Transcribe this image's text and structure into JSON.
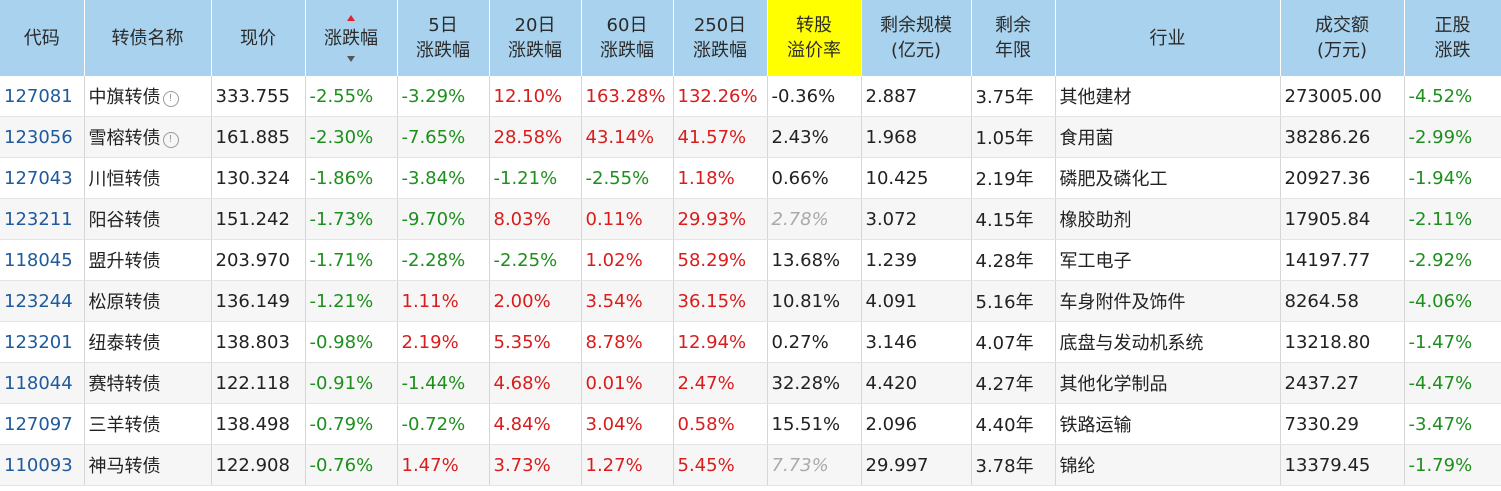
{
  "columns": [
    {
      "key": "code",
      "label": "代码"
    },
    {
      "key": "name",
      "label": "转债名称"
    },
    {
      "key": "price",
      "label": "现价"
    },
    {
      "key": "chg",
      "label": "涨跌幅"
    },
    {
      "key": "chg5",
      "label": "5日\n涨跌幅"
    },
    {
      "key": "chg20",
      "label": "20日\n涨跌幅"
    },
    {
      "key": "chg60",
      "label": "60日\n涨跌幅"
    },
    {
      "key": "chg250",
      "label": "250日\n涨跌幅"
    },
    {
      "key": "premium",
      "label": "转股\n溢价率"
    },
    {
      "key": "scale",
      "label": "剩余规模\n(亿元)"
    },
    {
      "key": "years",
      "label": "剩余\n年限"
    },
    {
      "key": "industry",
      "label": "行业"
    },
    {
      "key": "volume",
      "label": "成交额\n(万元)"
    },
    {
      "key": "stock_chg",
      "label": "正股\n涨跌"
    }
  ],
  "sort_column": "chg",
  "highlight_column": "premium",
  "colors": {
    "positive": "#d91c1c",
    "negative": "#1d8f1d",
    "header_bg": "#a9d2ee",
    "highlight": "#ffff00",
    "link": "#1e5a9c"
  },
  "rows": [
    {
      "code": "127081",
      "name": "中旗转债",
      "info": true,
      "price": "333.755",
      "chg": "-2.55%",
      "chg5": "-3.29%",
      "chg20": "12.10%",
      "chg60": "163.28%",
      "chg250": "132.26%",
      "premium": "-0.36%",
      "premium_muted": false,
      "scale": "2.887",
      "years": "3.75年",
      "industry": "其他建材",
      "volume": "273005.00",
      "stock_chg": "-4.52%"
    },
    {
      "code": "123056",
      "name": "雪榕转债",
      "info": true,
      "price": "161.885",
      "chg": "-2.30%",
      "chg5": "-7.65%",
      "chg20": "28.58%",
      "chg60": "43.14%",
      "chg250": "41.57%",
      "premium": "2.43%",
      "premium_muted": false,
      "scale": "1.968",
      "years": "1.05年",
      "industry": "食用菌",
      "volume": "38286.26",
      "stock_chg": "-2.99%"
    },
    {
      "code": "127043",
      "name": "川恒转债",
      "info": false,
      "price": "130.324",
      "chg": "-1.86%",
      "chg5": "-3.84%",
      "chg20": "-1.21%",
      "chg60": "-2.55%",
      "chg250": "1.18%",
      "premium": "0.66%",
      "premium_muted": false,
      "scale": "10.425",
      "years": "2.19年",
      "industry": "磷肥及磷化工",
      "volume": "20927.36",
      "stock_chg": "-1.94%"
    },
    {
      "code": "123211",
      "name": "阳谷转债",
      "info": false,
      "price": "151.242",
      "chg": "-1.73%",
      "chg5": "-9.70%",
      "chg20": "8.03%",
      "chg60": "0.11%",
      "chg250": "29.93%",
      "premium": "2.78%",
      "premium_muted": true,
      "scale": "3.072",
      "years": "4.15年",
      "industry": "橡胶助剂",
      "volume": "17905.84",
      "stock_chg": "-2.11%"
    },
    {
      "code": "118045",
      "name": "盟升转债",
      "info": false,
      "price": "203.970",
      "chg": "-1.71%",
      "chg5": "-2.28%",
      "chg20": "-2.25%",
      "chg60": "1.02%",
      "chg250": "58.29%",
      "premium": "13.68%",
      "premium_muted": false,
      "scale": "1.239",
      "years": "4.28年",
      "industry": "军工电子",
      "volume": "14197.77",
      "stock_chg": "-2.92%"
    },
    {
      "code": "123244",
      "name": "松原转债",
      "info": false,
      "price": "136.149",
      "chg": "-1.21%",
      "chg5": "1.11%",
      "chg20": "2.00%",
      "chg60": "3.54%",
      "chg250": "36.15%",
      "premium": "10.81%",
      "premium_muted": false,
      "scale": "4.091",
      "years": "5.16年",
      "industry": "车身附件及饰件",
      "volume": "8264.58",
      "stock_chg": "-4.06%"
    },
    {
      "code": "123201",
      "name": "纽泰转债",
      "info": false,
      "price": "138.803",
      "chg": "-0.98%",
      "chg5": "2.19%",
      "chg20": "5.35%",
      "chg60": "8.78%",
      "chg250": "12.94%",
      "premium": "0.27%",
      "premium_muted": false,
      "scale": "3.146",
      "years": "4.07年",
      "industry": "底盘与发动机系统",
      "volume": "13218.80",
      "stock_chg": "-1.47%"
    },
    {
      "code": "118044",
      "name": "赛特转债",
      "info": false,
      "price": "122.118",
      "chg": "-0.91%",
      "chg5": "-1.44%",
      "chg20": "4.68%",
      "chg60": "0.01%",
      "chg250": "2.47%",
      "premium": "32.28%",
      "premium_muted": false,
      "scale": "4.420",
      "years": "4.27年",
      "industry": "其他化学制品",
      "volume": "2437.27",
      "stock_chg": "-4.47%"
    },
    {
      "code": "127097",
      "name": "三羊转债",
      "info": false,
      "price": "138.498",
      "chg": "-0.79%",
      "chg5": "-0.72%",
      "chg20": "4.84%",
      "chg60": "3.04%",
      "chg250": "0.58%",
      "premium": "15.51%",
      "premium_muted": false,
      "scale": "2.096",
      "years": "4.40年",
      "industry": "铁路运输",
      "volume": "7330.29",
      "stock_chg": "-3.47%"
    },
    {
      "code": "110093",
      "name": "神马转债",
      "info": false,
      "price": "122.908",
      "chg": "-0.76%",
      "chg5": "1.47%",
      "chg20": "3.73%",
      "chg60": "1.27%",
      "chg250": "5.45%",
      "premium": "7.73%",
      "premium_muted": true,
      "scale": "29.997",
      "years": "3.78年",
      "industry": "锦纶",
      "volume": "13379.45",
      "stock_chg": "-1.79%"
    }
  ]
}
